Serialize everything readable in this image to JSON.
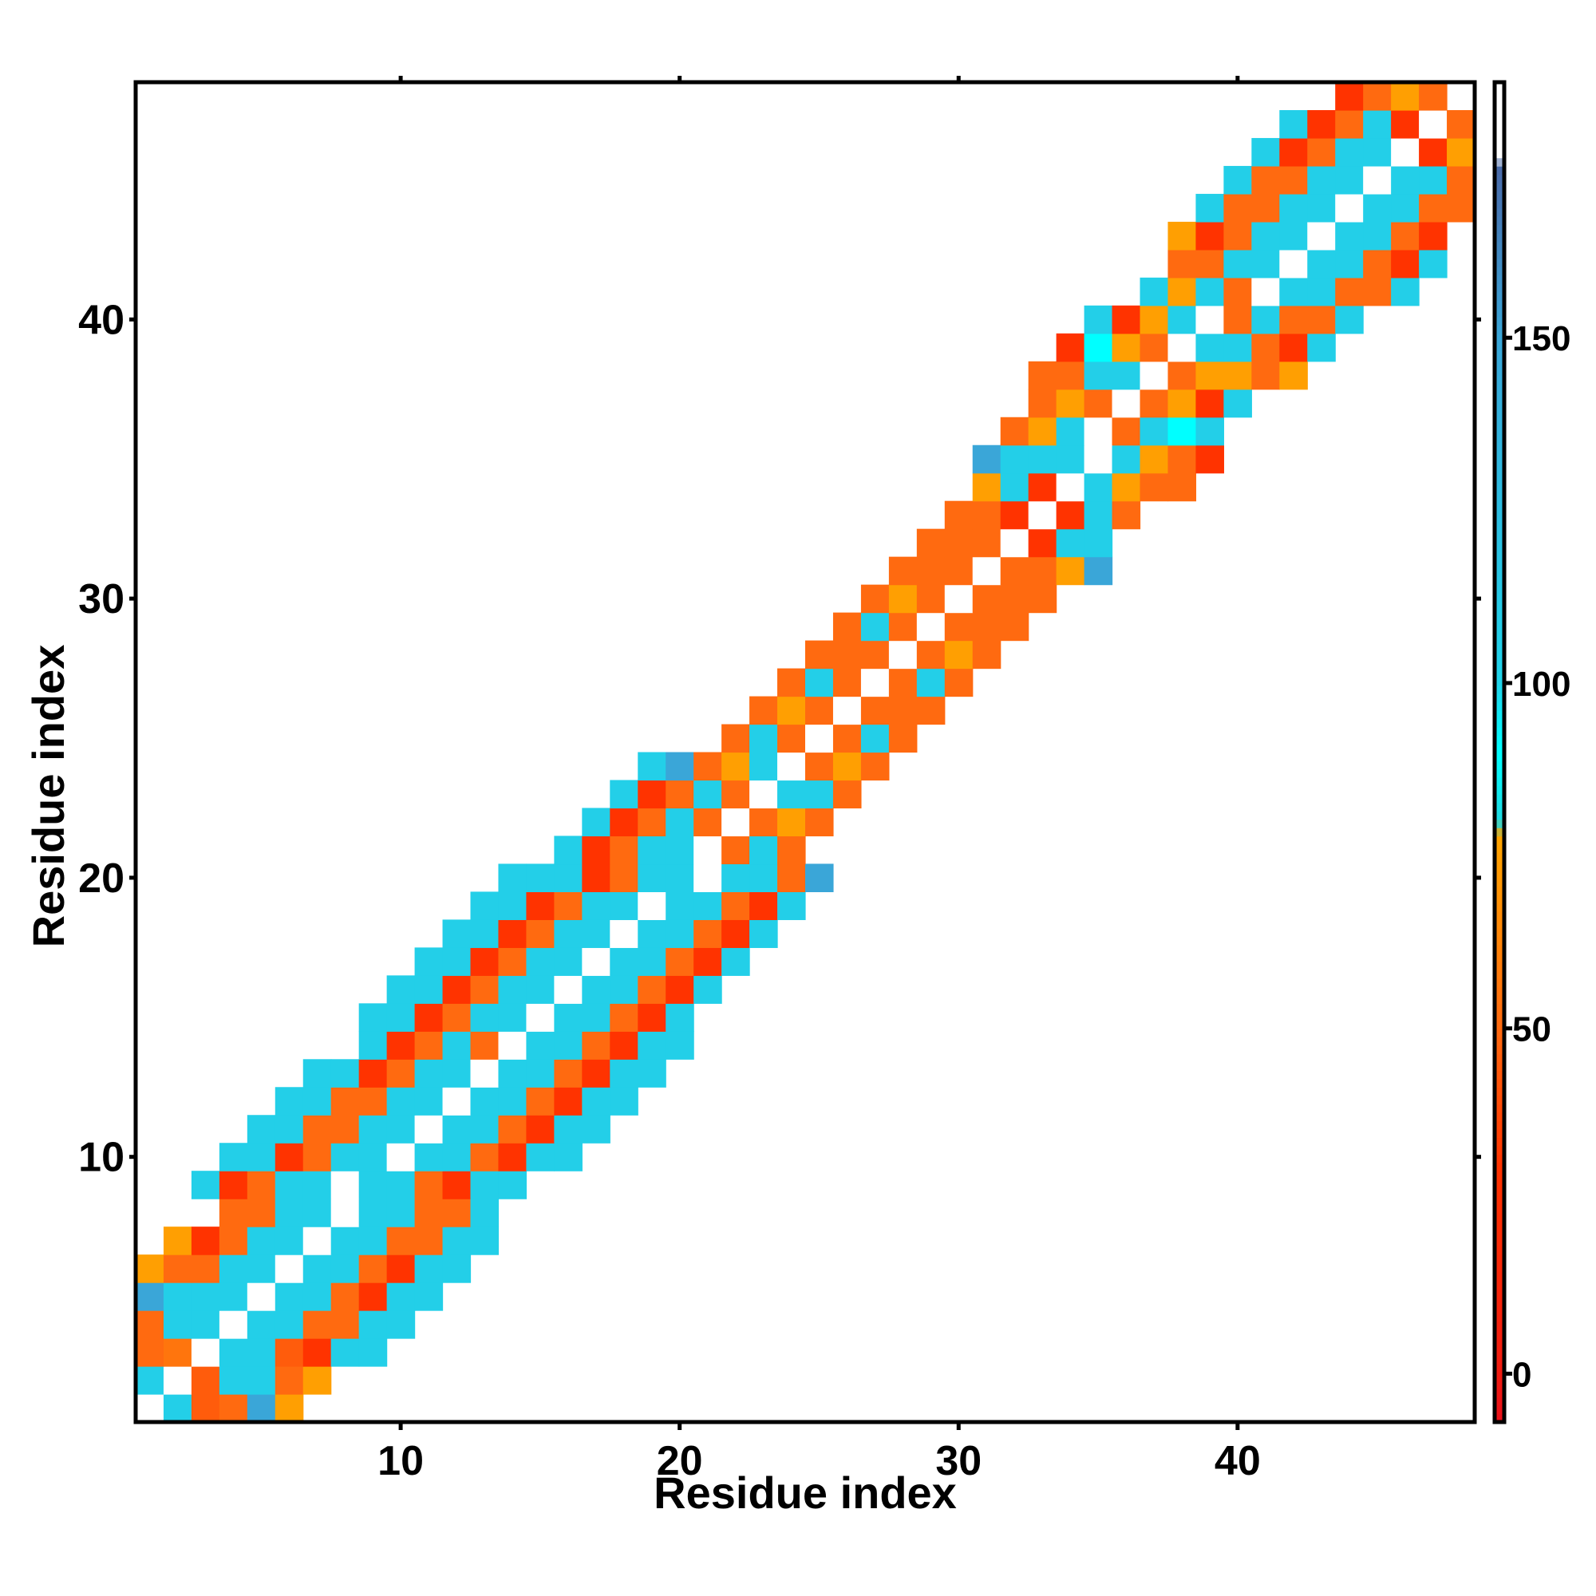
{
  "chart_data": {
    "type": "heatmap",
    "xlabel": "Residue index",
    "ylabel": "Residue index",
    "x_range": [
      0.5,
      48.5
    ],
    "y_range": [
      0.5,
      48.5
    ],
    "x_ticks": [
      10,
      20,
      30,
      40
    ],
    "y_ticks": [
      10,
      20,
      30,
      40
    ],
    "colorbar": {
      "range": [
        -7,
        187
      ],
      "ticks": [
        0,
        50,
        100,
        150
      ],
      "stops": [
        {
          "value": -7,
          "color": "#e8101a"
        },
        {
          "value": 0,
          "color": "#f01c12"
        },
        {
          "value": 30,
          "color": "#ff3300"
        },
        {
          "value": 50,
          "color": "#ff6a10"
        },
        {
          "value": 78,
          "color": "#ffa500"
        },
        {
          "value": 80,
          "color": "#20d8e0"
        },
        {
          "value": 90,
          "color": "#00ffff"
        },
        {
          "value": 100,
          "color": "#20d4ea"
        },
        {
          "value": 150,
          "color": "#3aa6d8"
        },
        {
          "value": 175,
          "color": "#4a6aa8"
        },
        {
          "value": 176,
          "color": "#ffffff"
        },
        {
          "value": 187,
          "color": "#ffffff"
        }
      ]
    },
    "rows": [
      {
        "y": 1,
        "x_start": 1,
        "values": [
          180,
          105,
          45,
          50,
          150,
          75
        ]
      },
      {
        "y": 2,
        "x_start": 1,
        "values": [
          105,
          180,
          45,
          105,
          105,
          50,
          75
        ]
      },
      {
        "y": 3,
        "x_start": 1,
        "values": [
          50,
          55,
          180,
          105,
          105,
          45,
          30,
          105,
          105
        ]
      },
      {
        "y": 4,
        "x_start": 1,
        "values": [
          50,
          105,
          105,
          180,
          105,
          105,
          50,
          50,
          105,
          105
        ]
      },
      {
        "y": 5,
        "x_start": 1,
        "values": [
          150,
          105,
          105,
          105,
          180,
          105,
          105,
          50,
          30,
          105,
          105
        ]
      },
      {
        "y": 6,
        "x_start": 1,
        "values": [
          75,
          50,
          50,
          105,
          105,
          180,
          105,
          105,
          50,
          30,
          105,
          105
        ]
      },
      {
        "y": 7,
        "x_start": 2,
        "values": [
          75,
          30,
          50,
          105,
          105,
          180,
          105,
          105,
          50,
          50,
          105,
          105
        ]
      },
      {
        "y": 8,
        "x_start": 4,
        "values": [
          50,
          50,
          105,
          105,
          180,
          105,
          105,
          50,
          50,
          105
        ]
      },
      {
        "y": 9,
        "x_start": 3,
        "values": [
          105,
          30,
          50,
          105,
          105,
          180,
          105,
          105,
          50,
          30,
          105,
          105
        ]
      },
      {
        "y": 10,
        "x_start": 4,
        "values": [
          105,
          105,
          30,
          50,
          105,
          105,
          180,
          105,
          105,
          50,
          30,
          105,
          105
        ]
      },
      {
        "y": 11,
        "x_start": 5,
        "values": [
          105,
          105,
          50,
          50,
          105,
          105,
          180,
          105,
          105,
          50,
          30,
          105,
          105
        ]
      },
      {
        "y": 12,
        "x_start": 6,
        "values": [
          105,
          105,
          50,
          50,
          105,
          105,
          180,
          105,
          105,
          50,
          30,
          105,
          105
        ]
      },
      {
        "y": 13,
        "x_start": 7,
        "values": [
          105,
          105,
          30,
          50,
          105,
          105,
          180,
          105,
          105,
          50,
          30,
          105,
          105
        ]
      },
      {
        "y": 14,
        "x_start": 9,
        "values": [
          105,
          30,
          50,
          105,
          50,
          180,
          105,
          105,
          50,
          30,
          105,
          105
        ]
      },
      {
        "y": 15,
        "x_start": 9,
        "values": [
          105,
          105,
          30,
          50,
          105,
          105,
          180,
          105,
          105,
          50,
          30,
          105
        ]
      },
      {
        "y": 16,
        "x_start": 10,
        "values": [
          105,
          105,
          30,
          50,
          105,
          105,
          180,
          105,
          105,
          50,
          30,
          105
        ]
      },
      {
        "y": 17,
        "x_start": 11,
        "values": [
          105,
          105,
          30,
          50,
          105,
          105,
          180,
          105,
          105,
          50,
          30,
          105
        ]
      },
      {
        "y": 18,
        "x_start": 12,
        "values": [
          105,
          105,
          30,
          50,
          105,
          105,
          180,
          105,
          105,
          50,
          30,
          105
        ]
      },
      {
        "y": 19,
        "x_start": 13,
        "values": [
          105,
          105,
          30,
          50,
          105,
          105,
          180,
          105,
          105,
          50,
          30,
          105
        ]
      },
      {
        "y": 20,
        "x_start": 14,
        "values": [
          105,
          105,
          105,
          30,
          50,
          105,
          105,
          180,
          105,
          105,
          50,
          150
        ]
      },
      {
        "y": 21,
        "x_start": 16,
        "values": [
          105,
          30,
          50,
          105,
          105,
          180,
          50,
          105,
          50
        ]
      },
      {
        "y": 22,
        "x_start": 17,
        "values": [
          105,
          30,
          50,
          105,
          50,
          180,
          50,
          75,
          50
        ]
      },
      {
        "y": 23,
        "x_start": 18,
        "values": [
          105,
          30,
          50,
          105,
          50,
          180,
          105,
          105,
          50
        ]
      },
      {
        "y": 24,
        "x_start": 19,
        "values": [
          105,
          150,
          50,
          75,
          105,
          180,
          50,
          75,
          50
        ]
      },
      {
        "y": 25,
        "x_start": 22,
        "values": [
          50,
          105,
          50,
          180,
          50,
          105,
          50
        ]
      },
      {
        "y": 26,
        "x_start": 23,
        "values": [
          50,
          75,
          50,
          180,
          50,
          50,
          50
        ]
      },
      {
        "y": 27,
        "x_start": 24,
        "values": [
          50,
          105,
          50,
          180,
          50,
          105,
          50
        ]
      },
      {
        "y": 28,
        "x_start": 25,
        "values": [
          50,
          50,
          50,
          180,
          50,
          75,
          50
        ]
      },
      {
        "y": 29,
        "x_start": 26,
        "values": [
          50,
          105,
          50,
          180,
          50,
          50,
          50
        ]
      },
      {
        "y": 30,
        "x_start": 27,
        "values": [
          50,
          75,
          50,
          180,
          50,
          50,
          50
        ]
      },
      {
        "y": 31,
        "x_start": 28,
        "values": [
          50,
          50,
          50,
          180,
          50,
          50,
          75,
          150
        ]
      },
      {
        "y": 32,
        "x_start": 29,
        "values": [
          50,
          50,
          50,
          180,
          30,
          105,
          105
        ]
      },
      {
        "y": 33,
        "x_start": 30,
        "values": [
          50,
          50,
          30,
          180,
          30,
          105,
          50
        ]
      },
      {
        "y": 34,
        "x_start": 31,
        "values": [
          75,
          105,
          30,
          180,
          105,
          75,
          50,
          50
        ]
      },
      {
        "y": 35,
        "x_start": 31,
        "values": [
          150,
          105,
          105,
          105,
          180,
          105,
          75,
          50,
          30
        ]
      },
      {
        "y": 36,
        "x_start": 32,
        "values": [
          50,
          75,
          105,
          180,
          50,
          105,
          90,
          105
        ]
      },
      {
        "y": 37,
        "x_start": 33,
        "values": [
          50,
          75,
          50,
          180,
          50,
          75,
          30,
          105
        ]
      },
      {
        "y": 38,
        "x_start": 33,
        "values": [
          50,
          50,
          105,
          105,
          180,
          50,
          75,
          75,
          50,
          75
        ]
      },
      {
        "y": 39,
        "x_start": 34,
        "values": [
          30,
          90,
          75,
          50,
          180,
          105,
          105,
          50,
          30,
          105
        ]
      },
      {
        "y": 40,
        "x_start": 35,
        "values": [
          105,
          30,
          75,
          105,
          180,
          50,
          105,
          50,
          50,
          105
        ]
      },
      {
        "y": 41,
        "x_start": 37,
        "values": [
          105,
          75,
          105,
          50,
          180,
          105,
          105,
          50,
          50,
          105
        ]
      },
      {
        "y": 42,
        "x_start": 38,
        "values": [
          50,
          50,
          105,
          105,
          180,
          105,
          105,
          50,
          30,
          105
        ]
      },
      {
        "y": 43,
        "x_start": 38,
        "values": [
          75,
          30,
          50,
          105,
          105,
          180,
          105,
          105,
          50,
          30
        ]
      },
      {
        "y": 44,
        "x_start": 39,
        "values": [
          105,
          50,
          50,
          105,
          105,
          180,
          105,
          105,
          50,
          50
        ]
      },
      {
        "y": 45,
        "x_start": 40,
        "values": [
          105,
          50,
          50,
          105,
          105,
          180,
          105,
          105,
          50
        ]
      },
      {
        "y": 46,
        "x_start": 41,
        "values": [
          105,
          30,
          50,
          105,
          105,
          180,
          30,
          75
        ]
      },
      {
        "y": 47,
        "x_start": 42,
        "values": [
          105,
          30,
          50,
          105,
          30,
          180,
          50
        ]
      },
      {
        "y": 48,
        "x_start": 44,
        "values": [
          30,
          50,
          75,
          50
        ]
      }
    ]
  }
}
